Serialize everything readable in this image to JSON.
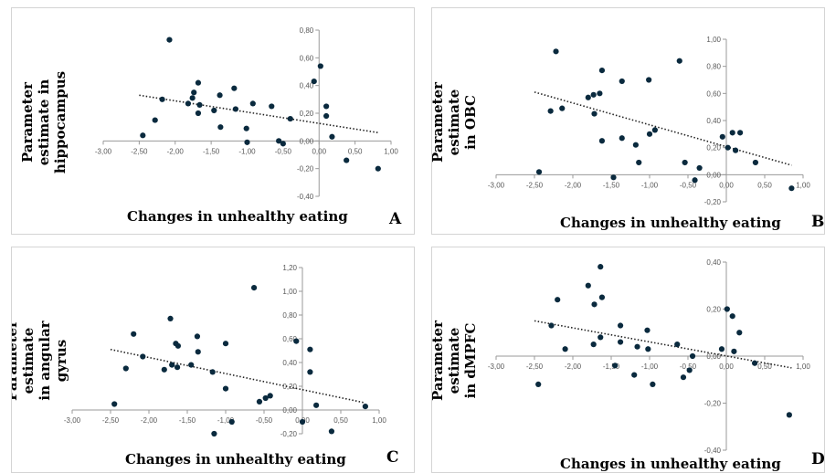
{
  "chart_data": [
    {
      "type": "scatter",
      "panel": "A",
      "xlabel": "Changes in unhealthy eating",
      "ylabel": "Parameter estimate in hippocampus",
      "xlim": [
        -3.0,
        1.0
      ],
      "ylim": [
        -0.4,
        0.8
      ],
      "xticks": [
        -3.0,
        -2.5,
        -2.0,
        -1.5,
        -1.0,
        -0.5,
        0.0,
        0.5,
        1.0
      ],
      "xtick_labels": [
        "-3,00",
        "-2,50",
        "-2,00",
        "-1,50",
        "-1,00",
        "-0,50",
        "0,00",
        "0,50",
        "1,00"
      ],
      "yticks": [
        -0.4,
        -0.2,
        0.0,
        0.2,
        0.4,
        0.6,
        0.8
      ],
      "ytick_labels": [
        "-0,40",
        "-0,20",
        "0,00",
        "0,20",
        "0,40",
        "0,60",
        "0,80"
      ],
      "grid": false,
      "trendline": {
        "style": "dotted",
        "x": [
          -2.5,
          0.82
        ],
        "y": [
          0.33,
          0.06
        ]
      },
      "points": [
        {
          "x": -2.45,
          "y": 0.04
        },
        {
          "x": -2.28,
          "y": 0.15
        },
        {
          "x": -2.18,
          "y": 0.3
        },
        {
          "x": -2.08,
          "y": 0.73
        },
        {
          "x": -1.82,
          "y": 0.27
        },
        {
          "x": -1.76,
          "y": 0.31
        },
        {
          "x": -1.74,
          "y": 0.35
        },
        {
          "x": -1.68,
          "y": 0.42
        },
        {
          "x": -1.68,
          "y": 0.2
        },
        {
          "x": -1.66,
          "y": 0.26
        },
        {
          "x": -1.46,
          "y": 0.22
        },
        {
          "x": -1.38,
          "y": 0.33
        },
        {
          "x": -1.37,
          "y": 0.1
        },
        {
          "x": -1.18,
          "y": 0.38
        },
        {
          "x": -1.16,
          "y": 0.23
        },
        {
          "x": -1.01,
          "y": 0.09
        },
        {
          "x": -1.0,
          "y": -0.01
        },
        {
          "x": -0.92,
          "y": 0.27
        },
        {
          "x": -0.66,
          "y": 0.25
        },
        {
          "x": -0.56,
          "y": 0.0
        },
        {
          "x": -0.5,
          "y": -0.02
        },
        {
          "x": -0.4,
          "y": 0.16
        },
        {
          "x": -0.07,
          "y": 0.43
        },
        {
          "x": 0.02,
          "y": 0.54
        },
        {
          "x": 0.1,
          "y": 0.25
        },
        {
          "x": 0.1,
          "y": 0.18
        },
        {
          "x": 0.18,
          "y": 0.03
        },
        {
          "x": 0.38,
          "y": -0.14
        },
        {
          "x": 0.82,
          "y": -0.2
        }
      ]
    },
    {
      "type": "scatter",
      "panel": "B",
      "xlabel": "Changes in unhealthy eating",
      "ylabel": "Parameter estimate in OBC",
      "xlim": [
        -3.0,
        1.0
      ],
      "ylim": [
        -0.2,
        1.0
      ],
      "xticks": [
        -3.0,
        -2.5,
        -2.0,
        -1.5,
        -1.0,
        -0.5,
        0.0,
        0.5,
        1.0
      ],
      "xtick_labels": [
        "-3,00",
        "-2,50",
        "-2,00",
        "-1,50",
        "-1,00",
        "-0,50",
        "0,00",
        "0,50",
        "1,00"
      ],
      "yticks": [
        -0.2,
        0.0,
        0.2,
        0.4,
        0.6,
        0.8,
        1.0
      ],
      "ytick_labels": [
        "-0,20",
        "0,00",
        "0,20",
        "0,40",
        "0,60",
        "0,80",
        "1,00"
      ],
      "grid": false,
      "trendline": {
        "style": "dotted",
        "x": [
          -2.5,
          0.85
        ],
        "y": [
          0.61,
          0.07
        ]
      },
      "points": [
        {
          "x": -2.44,
          "y": 0.02
        },
        {
          "x": -2.29,
          "y": 0.47
        },
        {
          "x": -2.22,
          "y": 0.91
        },
        {
          "x": -2.14,
          "y": 0.49
        },
        {
          "x": -1.8,
          "y": 0.57
        },
        {
          "x": -1.73,
          "y": 0.59
        },
        {
          "x": -1.72,
          "y": 0.45
        },
        {
          "x": -1.65,
          "y": 0.6
        },
        {
          "x": -1.62,
          "y": 0.77
        },
        {
          "x": -1.62,
          "y": 0.25
        },
        {
          "x": -1.47,
          "y": -0.02
        },
        {
          "x": -1.36,
          "y": 0.27
        },
        {
          "x": -1.36,
          "y": 0.69
        },
        {
          "x": -1.18,
          "y": 0.22
        },
        {
          "x": -1.14,
          "y": 0.09
        },
        {
          "x": -1.01,
          "y": 0.7
        },
        {
          "x": -1.0,
          "y": 0.3
        },
        {
          "x": -0.93,
          "y": 0.33
        },
        {
          "x": -0.61,
          "y": 0.84
        },
        {
          "x": -0.54,
          "y": 0.09
        },
        {
          "x": -0.41,
          "y": -0.04
        },
        {
          "x": -0.35,
          "y": 0.05
        },
        {
          "x": -0.05,
          "y": 0.28
        },
        {
          "x": 0.02,
          "y": 0.2
        },
        {
          "x": 0.08,
          "y": 0.31
        },
        {
          "x": 0.12,
          "y": 0.18
        },
        {
          "x": 0.18,
          "y": 0.31
        },
        {
          "x": 0.38,
          "y": 0.09
        },
        {
          "x": 0.85,
          "y": -0.1
        }
      ]
    },
    {
      "type": "scatter",
      "panel": "C",
      "xlabel": "Changes in unhealthy eating",
      "ylabel": "Parameter estimate in angular gyrus",
      "xlim": [
        -3.0,
        1.0
      ],
      "ylim": [
        -0.2,
        1.2
      ],
      "xticks": [
        -3.0,
        -2.5,
        -2.0,
        -1.5,
        -1.0,
        -0.5,
        0.0,
        0.5,
        1.0
      ],
      "xtick_labels": [
        "-3,00",
        "-2,50",
        "-2,00",
        "-1,50",
        "-1,00",
        "-0,50",
        "0,00",
        "0,50",
        "1,00"
      ],
      "yticks": [
        -0.2,
        0.0,
        0.2,
        0.4,
        0.6,
        0.8,
        1.0,
        1.2
      ],
      "ytick_labels": [
        "-0,20",
        "0,00",
        "0,20",
        "0,40",
        "0,60",
        "0,80",
        "1,00",
        "1,20"
      ],
      "grid": false,
      "trendline": {
        "style": "dotted",
        "x": [
          -2.5,
          0.82
        ],
        "y": [
          0.51,
          0.06
        ]
      },
      "points": [
        {
          "x": -2.45,
          "y": 0.05
        },
        {
          "x": -2.3,
          "y": 0.35
        },
        {
          "x": -2.2,
          "y": 0.64
        },
        {
          "x": -2.08,
          "y": 0.45
        },
        {
          "x": -1.8,
          "y": 0.34
        },
        {
          "x": -1.72,
          "y": 0.77
        },
        {
          "x": -1.7,
          "y": 0.38
        },
        {
          "x": -1.65,
          "y": 0.56
        },
        {
          "x": -1.63,
          "y": 0.36
        },
        {
          "x": -1.62,
          "y": 0.54
        },
        {
          "x": -1.45,
          "y": 0.38
        },
        {
          "x": -1.37,
          "y": 0.62
        },
        {
          "x": -1.36,
          "y": 0.49
        },
        {
          "x": -1.17,
          "y": 0.32
        },
        {
          "x": -1.15,
          "y": -0.2
        },
        {
          "x": -1.0,
          "y": 0.56
        },
        {
          "x": -1.0,
          "y": 0.18
        },
        {
          "x": -0.92,
          "y": -0.1
        },
        {
          "x": -0.63,
          "y": 1.03
        },
        {
          "x": -0.56,
          "y": 0.07
        },
        {
          "x": -0.48,
          "y": 0.1
        },
        {
          "x": -0.42,
          "y": 0.12
        },
        {
          "x": -0.08,
          "y": 0.58
        },
        {
          "x": 0.0,
          "y": -0.1
        },
        {
          "x": 0.1,
          "y": 0.51
        },
        {
          "x": 0.1,
          "y": 0.32
        },
        {
          "x": 0.18,
          "y": 0.04
        },
        {
          "x": 0.38,
          "y": -0.18
        },
        {
          "x": 0.82,
          "y": 0.03
        }
      ]
    },
    {
      "type": "scatter",
      "panel": "D",
      "xlabel": "Changes in unhealthy eating",
      "ylabel": "Parameter estimate in dMPFC",
      "xlim": [
        -3.0,
        1.0
      ],
      "ylim": [
        -0.4,
        0.4
      ],
      "xticks": [
        -3.0,
        -2.5,
        -2.0,
        -1.5,
        -1.0,
        -0.5,
        0.0,
        0.5,
        1.0
      ],
      "xtick_labels": [
        "-3,00",
        "-2,50",
        "-2,00",
        "-1,50",
        "-1,00",
        "-0,50",
        "0,00",
        "0,50",
        "1,00"
      ],
      "yticks": [
        -0.4,
        -0.2,
        0.0,
        0.2,
        0.4
      ],
      "ytick_labels": [
        "-0,40",
        "-0,20",
        "0,00",
        "0,20",
        "0,40"
      ],
      "grid": false,
      "trendline": {
        "style": "dotted",
        "x": [
          -2.5,
          0.85
        ],
        "y": [
          0.15,
          -0.05
        ]
      },
      "points": [
        {
          "x": -2.45,
          "y": -0.12
        },
        {
          "x": -2.28,
          "y": 0.13
        },
        {
          "x": -2.2,
          "y": 0.24
        },
        {
          "x": -2.1,
          "y": 0.03
        },
        {
          "x": -1.8,
          "y": 0.3
        },
        {
          "x": -1.73,
          "y": 0.05
        },
        {
          "x": -1.72,
          "y": 0.22
        },
        {
          "x": -1.64,
          "y": 0.38
        },
        {
          "x": -1.64,
          "y": 0.08
        },
        {
          "x": -1.62,
          "y": 0.25
        },
        {
          "x": -1.45,
          "y": -0.04
        },
        {
          "x": -1.38,
          "y": 0.13
        },
        {
          "x": -1.38,
          "y": 0.06
        },
        {
          "x": -1.2,
          "y": -0.08
        },
        {
          "x": -1.16,
          "y": 0.04
        },
        {
          "x": -1.03,
          "y": 0.11
        },
        {
          "x": -1.02,
          "y": 0.03
        },
        {
          "x": -0.96,
          "y": -0.12
        },
        {
          "x": -0.64,
          "y": 0.05
        },
        {
          "x": -0.56,
          "y": -0.09
        },
        {
          "x": -0.48,
          "y": -0.06
        },
        {
          "x": -0.44,
          "y": 0.0
        },
        {
          "x": -0.06,
          "y": 0.03
        },
        {
          "x": 0.01,
          "y": 0.2
        },
        {
          "x": 0.08,
          "y": 0.17
        },
        {
          "x": 0.1,
          "y": 0.02
        },
        {
          "x": 0.17,
          "y": 0.1
        },
        {
          "x": 0.37,
          "y": -0.03
        },
        {
          "x": 0.82,
          "y": -0.25
        }
      ]
    }
  ],
  "colors": {
    "point": "#0a2a3e",
    "axis": "#9a9a9a",
    "trend": "#222222",
    "text": "#595959"
  }
}
